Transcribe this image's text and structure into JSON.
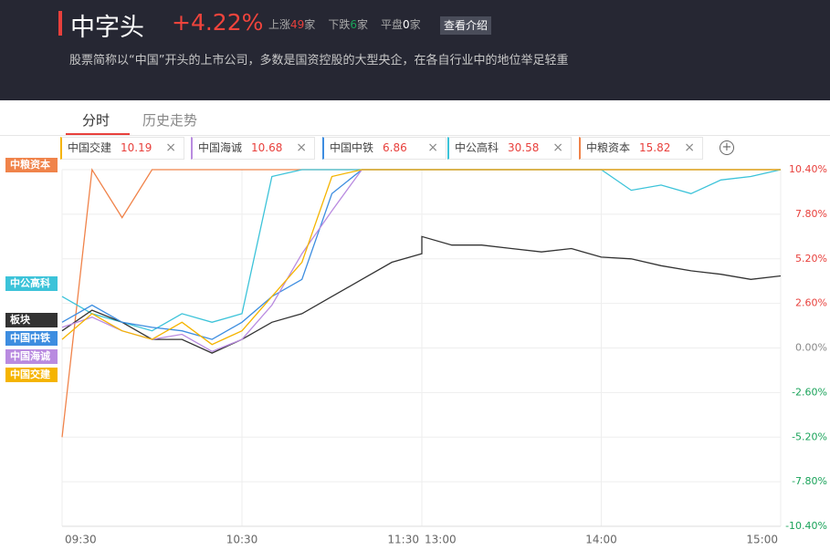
{
  "header": {
    "title": "中字头",
    "change": "+4.22%",
    "counts": [
      {
        "label": "上涨",
        "count": 49,
        "unit": "家"
      },
      {
        "label": "下跌",
        "count": 6,
        "unit": "家"
      },
      {
        "label": "平盘",
        "count": 0,
        "unit": "家"
      }
    ],
    "button": "查看介绍",
    "description": "股票简称以“中国”开头的上市公司，多数是国资控股的大型央企，在各自行业中的地位举足轻重"
  },
  "tabs": [
    "分时",
    "历史走势"
  ],
  "stocks": [
    {
      "name": "中国交建",
      "price": "10.19",
      "color": "#f5b400"
    },
    {
      "name": "中国海诚",
      "price": "10.68",
      "color": "#b98be0"
    },
    {
      "name": "中国中铁",
      "price": "6.86",
      "color": "#3d8de0"
    },
    {
      "name": "中公高科",
      "price": "30.58",
      "color": "#3cc3d9"
    },
    {
      "name": "中粮资本",
      "price": "15.82",
      "color": "#f0834a"
    }
  ],
  "chart_data": {
    "type": "line",
    "categories": [
      "09:30",
      null,
      null,
      null,
      null,
      null,
      "10:30",
      null,
      null,
      null,
      null,
      null,
      "11:30",
      "13:00",
      null,
      null,
      null,
      null,
      null,
      "14:00",
      null,
      null,
      null,
      null,
      null,
      "15:00"
    ],
    "series": [
      {
        "name": "中粮资本",
        "color": "#f0834a",
        "values": [
          -5.2,
          10.4,
          7.6,
          10.4,
          10.4,
          10.4,
          10.4,
          10.4,
          10.4,
          10.4,
          10.4,
          10.4,
          10.4,
          10.4,
          10.4,
          10.4,
          10.4,
          10.4,
          10.4,
          10.4,
          10.4,
          10.4,
          10.4,
          10.4,
          10.4,
          10.4
        ]
      },
      {
        "name": "中公高科",
        "color": "#3cc3d9",
        "values": [
          3.0,
          2.0,
          1.5,
          1.0,
          2.0,
          1.5,
          2.0,
          10.0,
          10.4,
          10.4,
          10.4,
          10.4,
          10.4,
          10.4,
          10.4,
          10.4,
          10.4,
          10.4,
          10.4,
          10.4,
          9.2,
          9.5,
          9.0,
          9.8,
          10.0,
          10.4
        ]
      },
      {
        "name": "板块",
        "color": "#333333",
        "values": [
          1.0,
          2.2,
          1.5,
          0.5,
          0.5,
          -0.3,
          0.5,
          1.5,
          2.0,
          3.0,
          4.0,
          5.0,
          5.5,
          6.5,
          6.0,
          6.0,
          5.8,
          5.6,
          5.8,
          5.3,
          5.2,
          4.8,
          4.5,
          4.3,
          4.0,
          4.2
        ]
      },
      {
        "name": "中国中铁",
        "color": "#3d8de0",
        "values": [
          1.5,
          2.5,
          1.5,
          1.2,
          1.0,
          0.5,
          1.5,
          3.0,
          4.0,
          9.0,
          10.4,
          10.4,
          10.4,
          10.4,
          10.4,
          10.4,
          10.4,
          10.4,
          10.4,
          10.4,
          10.4,
          10.4,
          10.4,
          10.4,
          10.4,
          10.4
        ]
      },
      {
        "name": "中国海诚",
        "color": "#b98be0",
        "values": [
          1.2,
          1.8,
          1.0,
          0.5,
          0.8,
          -0.2,
          0.5,
          2.5,
          5.5,
          8.0,
          10.4,
          10.4,
          10.4,
          10.4,
          10.4,
          10.4,
          10.4,
          10.4,
          10.4,
          10.4,
          10.4,
          10.4,
          10.4,
          10.4,
          10.4,
          10.4
        ]
      },
      {
        "name": "中国交建",
        "color": "#f5b400",
        "values": [
          0.5,
          2.0,
          1.0,
          0.5,
          1.5,
          0.2,
          1.0,
          3.0,
          5.0,
          10.0,
          10.4,
          10.4,
          10.4,
          10.4,
          10.4,
          10.4,
          10.4,
          10.4,
          10.4,
          10.4,
          10.4,
          10.4,
          10.4,
          10.4,
          10.4,
          10.4
        ]
      }
    ],
    "ylim": [
      -10.4,
      10.4
    ],
    "yticks": [
      {
        "value": 10.4,
        "label": "10.40%"
      },
      {
        "value": 7.8,
        "label": "7.80%"
      },
      {
        "value": 5.2,
        "label": "5.20%"
      },
      {
        "value": 2.6,
        "label": "2.60%"
      },
      {
        "value": 0,
        "label": "0.00%"
      },
      {
        "value": -2.6,
        "label": "-2.60%"
      },
      {
        "value": -5.2,
        "label": "-5.20%"
      },
      {
        "value": -7.8,
        "label": "-7.80%"
      },
      {
        "value": -10.4,
        "label": "-10.40%"
      }
    ],
    "grid": true
  }
}
